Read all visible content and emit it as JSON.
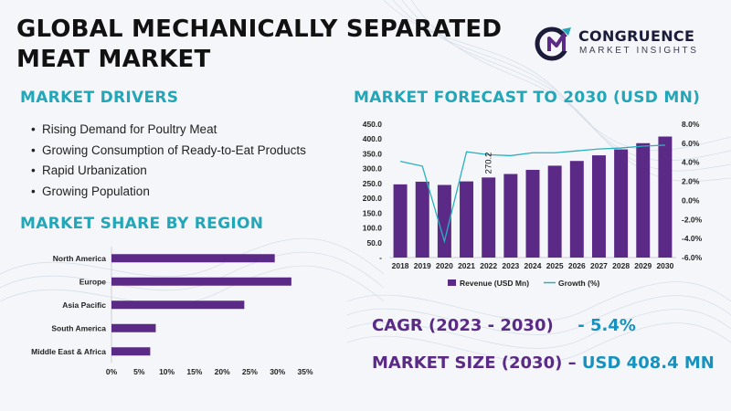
{
  "title": "GLOBAL MECHANICALLY SEPARATED MEAT MARKET",
  "logo": {
    "name": "CONGRUENCE",
    "tagline": "MARKET INSIGHTS"
  },
  "drivers": {
    "heading": "MARKET DRIVERS",
    "items": [
      "Rising Demand for Poultry Meat",
      "Growing Consumption of Ready-to-Eat Products",
      "Rapid Urbanization",
      "Growing Population"
    ]
  },
  "colors": {
    "heading": "#22a6b8",
    "bar": "#5b2a86",
    "growth_line": "#2ab0c0",
    "stat_label": "#5b2a86",
    "stat_value": "#1592c0"
  },
  "chart_data": [
    {
      "type": "bar",
      "orientation": "horizontal",
      "title": "MARKET SHARE BY REGION",
      "categories": [
        "North America",
        "Europe",
        "Asia Pacific",
        "South America",
        "Middle East & Africa"
      ],
      "values": [
        29.5,
        32.5,
        24,
        8,
        7
      ],
      "xlim": [
        0,
        35
      ],
      "xticks": [
        "0%",
        "5%",
        "10%",
        "15%",
        "20%",
        "25%",
        "30%",
        "35%"
      ],
      "grid": false
    },
    {
      "type": "bar",
      "title": "MARKET FORECAST TO 2030 (USD MN)",
      "categories": [
        "2018",
        "2019",
        "2020",
        "2021",
        "2022",
        "2023",
        "2024",
        "2025",
        "2026",
        "2027",
        "2028",
        "2029",
        "2030"
      ],
      "series": [
        {
          "name": "Revenue (USD Mn)",
          "type": "bar",
          "axis": "left",
          "values": [
            247,
            256,
            245,
            257,
            270.2,
            282,
            296,
            310,
            326,
            345,
            365,
            386,
            408.4
          ]
        },
        {
          "name": "Growth (%)",
          "type": "line",
          "axis": "right",
          "values": [
            4.1,
            3.6,
            -4.3,
            5.1,
            4.8,
            4.7,
            5.0,
            5.0,
            5.2,
            5.4,
            5.5,
            5.7,
            5.8
          ]
        }
      ],
      "data_labels": [
        {
          "category": "2022",
          "text": "270.2"
        }
      ],
      "ylim_left": [
        0,
        450
      ],
      "yticks_left": [
        "-",
        "50.0",
        "100.0",
        "150.0",
        "200.0",
        "250.0",
        "300.0",
        "350.0",
        "400.0",
        "450.0"
      ],
      "ylim_right": [
        -6,
        8
      ],
      "yticks_right": [
        "-6.0%",
        "-4.0%",
        "-2.0%",
        "0.0%",
        "2.0%",
        "4.0%",
        "6.0%",
        "8.0%"
      ],
      "legend": "bottom",
      "grid": false
    }
  ],
  "stats": {
    "cagr_label": "CAGR (2023 - 2030)",
    "cagr_value": "- 5.4%",
    "size_label": "MARKET SIZE (2030) –",
    "size_value": "USD 408.4 MN"
  }
}
